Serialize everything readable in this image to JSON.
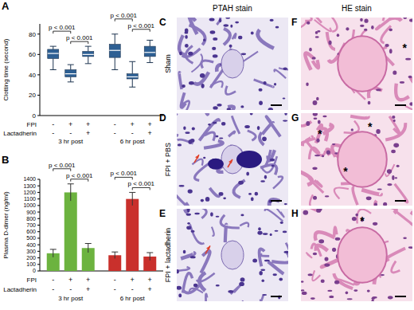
{
  "chart_data": [
    {
      "type": "box",
      "panel_label": "A",
      "y_label": "Clotting time (second)",
      "ylim": [
        0,
        90
      ],
      "yticks": [
        0,
        20,
        40,
        60,
        80
      ],
      "color": "#2d5f93",
      "grid": false,
      "condition_rows": [
        {
          "label": "FPI",
          "signs": [
            "-",
            "+",
            "+",
            "-",
            "+",
            "+"
          ]
        },
        {
          "label": "Lactadherin",
          "signs": [
            "-",
            "-",
            "+",
            "-",
            "-",
            "+"
          ]
        }
      ],
      "groups": [
        {
          "label": "3 hr post",
          "boxes": [
            {
              "min": 45,
              "q1": 56,
              "median": 61,
              "q3": 65,
              "max": 68
            },
            {
              "min": 33,
              "q1": 38,
              "median": 41,
              "q3": 45,
              "max": 50
            },
            {
              "min": 51,
              "q1": 58,
              "median": 60,
              "q3": 63,
              "max": 68
            }
          ],
          "comparisons": [
            {
              "between": [
                1,
                2
              ],
              "text": "p < 0.001"
            },
            {
              "between": [
                0,
                1
              ],
              "text": "p < 0.001"
            }
          ]
        },
        {
          "label": "6 hr post",
          "boxes": [
            {
              "min": 45,
              "q1": 57,
              "median": 64,
              "q3": 70,
              "max": 80
            },
            {
              "min": 28,
              "q1": 36,
              "median": 38,
              "q3": 41,
              "max": 53
            },
            {
              "min": 52,
              "q1": 58,
              "median": 62,
              "q3": 68,
              "max": 74
            }
          ],
          "comparisons": [
            {
              "between": [
                1,
                2
              ],
              "text": "p < 0.001"
            },
            {
              "between": [
                0,
                1
              ],
              "text": "p < 0.001"
            }
          ]
        }
      ]
    },
    {
      "type": "bar",
      "panel_label": "B",
      "y_label": "Plasma D-dimer (ng/ml)",
      "ylim": [
        0,
        1400
      ],
      "yticks": [
        0,
        100,
        200,
        300,
        400,
        500,
        600,
        700,
        800,
        900,
        1000,
        1100,
        1200,
        1300,
        1400
      ],
      "grid": false,
      "condition_rows": [
        {
          "label": "FPI",
          "signs": [
            "-",
            "+",
            "+",
            "-",
            "+",
            "+"
          ]
        },
        {
          "label": "Lactadherin",
          "signs": [
            "-",
            "-",
            "+",
            "-",
            "-",
            "+"
          ]
        }
      ],
      "groups": [
        {
          "label": "3 hr post",
          "color": "#6cb33f",
          "values": [
            270,
            1200,
            350
          ],
          "errors": [
            60,
            130,
            70
          ],
          "comparisons": [
            {
              "between": [
                1,
                2
              ],
              "text": "p < 0.001"
            },
            {
              "between": [
                0,
                1
              ],
              "text": "p < 0.001"
            }
          ]
        },
        {
          "label": "6 hr post",
          "color": "#c9302c",
          "values": [
            240,
            1100,
            220
          ],
          "errors": [
            50,
            100,
            60
          ],
          "comparisons": [
            {
              "between": [
                1,
                2
              ],
              "text": "p < 0.001"
            },
            {
              "between": [
                0,
                1
              ],
              "text": "p < 0.001"
            }
          ]
        }
      ]
    }
  ],
  "image_panels": {
    "rows": [
      "Sham",
      "FPI + PBS",
      "FPI + lactadherin"
    ],
    "columns": [
      {
        "header": "PTAH stain",
        "panels": [
          {
            "label": "C",
            "annotations": []
          },
          {
            "label": "D",
            "annotations": []
          },
          {
            "label": "E",
            "annotations": []
          }
        ]
      },
      {
        "header": "HE stain",
        "panels": [
          {
            "label": "F",
            "annotations": [
              "*"
            ]
          },
          {
            "label": "G",
            "annotations": [
              "*",
              "*",
              "*"
            ]
          },
          {
            "label": "H",
            "annotations": [
              "*"
            ]
          }
        ]
      }
    ]
  }
}
